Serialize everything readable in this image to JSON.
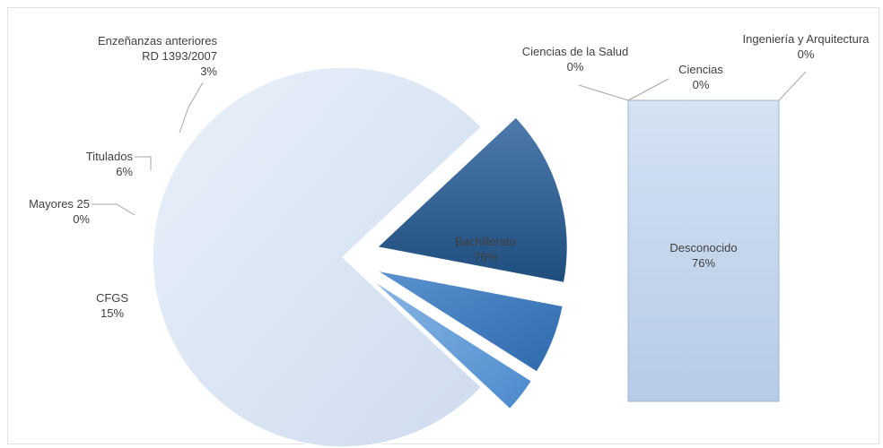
{
  "chart_data": [
    {
      "type": "pie",
      "categories": [
        "Bachillerato",
        "CFGS",
        "Mayores 25",
        "Titulados",
        "Enzeñanzas anteriores RD 1393/2007"
      ],
      "label_lines": [
        [
          "Bachillerato"
        ],
        [
          "CFGS"
        ],
        [
          "Mayores 25"
        ],
        [
          "Titulados"
        ],
        [
          "Enzeñanzas anteriores",
          "RD 1393/2007"
        ]
      ],
      "values": [
        76,
        15,
        0,
        6,
        3
      ],
      "value_labels": [
        "76%",
        "15%",
        "0%",
        "6%",
        "3%"
      ],
      "colors": [
        "#dde7f5",
        "#2e5a8a",
        "#3a6fa8",
        "#3f7fc4",
        "#5b9ad8"
      ],
      "exploded": [
        "CFGS",
        "Mayores 25",
        "Titulados",
        "Enzeñanzas anteriores RD 1393/2007"
      ]
    },
    {
      "type": "bar",
      "stacked": true,
      "categories": [
        "Desconocido",
        "Ciencias",
        "Ciencias de la Salud",
        "Ingeniería y Arquitectura"
      ],
      "values": [
        76,
        0,
        0,
        0
      ],
      "value_labels": [
        "76%",
        "0%",
        "0%",
        "0%"
      ],
      "color": "#c7d8ee"
    }
  ]
}
